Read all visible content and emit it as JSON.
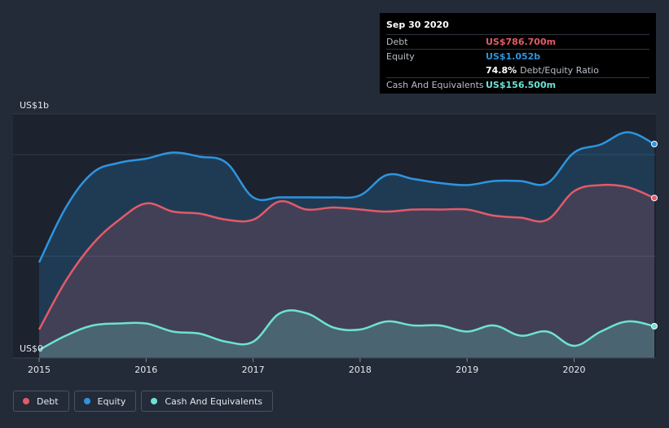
{
  "chart_data": {
    "type": "area",
    "y_axis_top_label": "US$1b",
    "y_axis_bottom_label": "US$0",
    "ylim": [
      0,
      1.2
    ],
    "xlim": [
      2015.0,
      2020.75
    ],
    "x_ticks": [
      "2015",
      "2016",
      "2017",
      "2018",
      "2019",
      "2020"
    ],
    "grid": true,
    "series": [
      {
        "name": "Debt",
        "color": "#e45a68",
        "fill": "rgba(228,90,104,0.18)",
        "points": [
          [
            2015.0,
            0.14
          ],
          [
            2015.25,
            0.38
          ],
          [
            2015.5,
            0.56
          ],
          [
            2015.75,
            0.68
          ],
          [
            2016.0,
            0.76
          ],
          [
            2016.25,
            0.72
          ],
          [
            2016.5,
            0.71
          ],
          [
            2016.75,
            0.68
          ],
          [
            2017.0,
            0.68
          ],
          [
            2017.25,
            0.77
          ],
          [
            2017.5,
            0.73
          ],
          [
            2017.75,
            0.74
          ],
          [
            2018.0,
            0.73
          ],
          [
            2018.25,
            0.72
          ],
          [
            2018.5,
            0.73
          ],
          [
            2018.75,
            0.73
          ],
          [
            2019.0,
            0.73
          ],
          [
            2019.25,
            0.7
          ],
          [
            2019.5,
            0.69
          ],
          [
            2019.75,
            0.68
          ],
          [
            2020.0,
            0.82
          ],
          [
            2020.25,
            0.85
          ],
          [
            2020.5,
            0.84
          ],
          [
            2020.75,
            0.7867
          ]
        ]
      },
      {
        "name": "Equity",
        "color": "#2d95e0",
        "fill": "rgba(45,149,224,0.22)",
        "points": [
          [
            2015.0,
            0.47
          ],
          [
            2015.25,
            0.74
          ],
          [
            2015.5,
            0.91
          ],
          [
            2015.75,
            0.96
          ],
          [
            2016.0,
            0.98
          ],
          [
            2016.25,
            1.01
          ],
          [
            2016.5,
            0.99
          ],
          [
            2016.75,
            0.96
          ],
          [
            2017.0,
            0.79
          ],
          [
            2017.25,
            0.79
          ],
          [
            2017.5,
            0.79
          ],
          [
            2017.75,
            0.79
          ],
          [
            2018.0,
            0.8
          ],
          [
            2018.25,
            0.9
          ],
          [
            2018.5,
            0.88
          ],
          [
            2018.75,
            0.86
          ],
          [
            2019.0,
            0.85
          ],
          [
            2019.25,
            0.87
          ],
          [
            2019.5,
            0.87
          ],
          [
            2019.75,
            0.86
          ],
          [
            2020.0,
            1.01
          ],
          [
            2020.25,
            1.05
          ],
          [
            2020.5,
            1.11
          ],
          [
            2020.75,
            1.052
          ]
        ]
      },
      {
        "name": "Cash And Equivalents",
        "color": "#6de2d4",
        "fill": "rgba(109,226,212,0.22)",
        "points": [
          [
            2015.0,
            0.04
          ],
          [
            2015.25,
            0.11
          ],
          [
            2015.5,
            0.16
          ],
          [
            2015.75,
            0.17
          ],
          [
            2016.0,
            0.17
          ],
          [
            2016.25,
            0.13
          ],
          [
            2016.5,
            0.12
          ],
          [
            2016.75,
            0.08
          ],
          [
            2017.0,
            0.08
          ],
          [
            2017.25,
            0.22
          ],
          [
            2017.5,
            0.22
          ],
          [
            2017.75,
            0.15
          ],
          [
            2018.0,
            0.14
          ],
          [
            2018.25,
            0.18
          ],
          [
            2018.5,
            0.16
          ],
          [
            2018.75,
            0.16
          ],
          [
            2019.0,
            0.13
          ],
          [
            2019.25,
            0.16
          ],
          [
            2019.5,
            0.11
          ],
          [
            2019.75,
            0.13
          ],
          [
            2020.0,
            0.06
          ],
          [
            2020.25,
            0.13
          ],
          [
            2020.5,
            0.18
          ],
          [
            2020.75,
            0.1565
          ]
        ]
      }
    ],
    "tooltip": {
      "date": "Sep 30 2020",
      "rows": [
        {
          "label": "Debt",
          "value": "US$786.700m",
          "color": "#e45a68"
        },
        {
          "label": "Equity",
          "value": "US$1.052b",
          "color": "#2d95e0"
        },
        {
          "ratio_pct": "74.8%",
          "ratio_label": "Debt/Equity Ratio"
        },
        {
          "label": "Cash And Equivalents",
          "value": "US$156.500m",
          "color": "#6de2d4"
        }
      ]
    }
  },
  "legend": {
    "items": [
      {
        "label": "Debt",
        "color": "#e45a68"
      },
      {
        "label": "Equity",
        "color": "#2d95e0"
      },
      {
        "label": "Cash And Equivalents",
        "color": "#6de2d4"
      }
    ]
  }
}
